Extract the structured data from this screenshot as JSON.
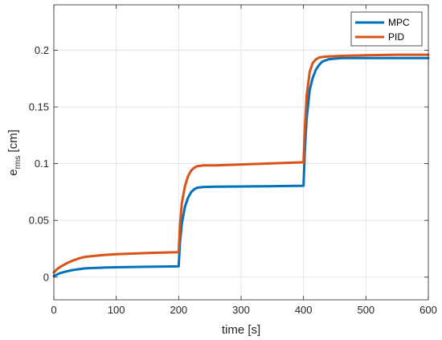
{
  "chart_data": {
    "type": "line",
    "title": "",
    "xlabel": "time [s]",
    "ylabel": {
      "main": "e",
      "sub": "rms",
      "unit": " [cm]"
    },
    "xlim": [
      0,
      600
    ],
    "ylim": [
      -0.02,
      0.24
    ],
    "xticks": [
      0,
      100,
      200,
      300,
      400,
      500,
      600
    ],
    "xtick_labels": [
      "0",
      "100",
      "200",
      "300",
      "400",
      "500",
      "600"
    ],
    "yticks": [
      0,
      0.05,
      0.1,
      0.15,
      0.2
    ],
    "ytick_labels": [
      "0",
      "0.05",
      "0.1",
      "0.15",
      "0.2"
    ],
    "grid": true,
    "legend_position": "top-right",
    "series": [
      {
        "name": "MPC",
        "color": "#0072BD",
        "x": [
          0,
          10,
          20,
          30,
          40,
          50,
          60,
          80,
          100,
          150,
          199,
          200,
          202,
          205,
          210,
          215,
          220,
          225,
          230,
          240,
          260,
          300,
          350,
          399,
          400,
          402,
          405,
          410,
          415,
          420,
          425,
          430,
          440,
          460,
          500,
          550,
          600
        ],
        "y": [
          0.001,
          0.0035,
          0.005,
          0.0062,
          0.007,
          0.0077,
          0.008,
          0.0084,
          0.0087,
          0.0091,
          0.0095,
          0.0095,
          0.03,
          0.047,
          0.062,
          0.07,
          0.075,
          0.0775,
          0.0788,
          0.0795,
          0.0797,
          0.0799,
          0.0802,
          0.0805,
          0.0805,
          0.11,
          0.14,
          0.165,
          0.176,
          0.183,
          0.187,
          0.19,
          0.192,
          0.193,
          0.193,
          0.193,
          0.193
        ]
      },
      {
        "name": "PID",
        "color": "#D95319",
        "x": [
          0,
          5,
          10,
          20,
          30,
          40,
          50,
          52,
          60,
          80,
          100,
          150,
          199,
          200,
          202,
          205,
          210,
          215,
          220,
          225,
          230,
          240,
          260,
          300,
          350,
          399,
          400,
          402,
          405,
          410,
          415,
          420,
          425,
          430,
          440,
          460,
          500,
          550,
          600
        ],
        "y": [
          0.004,
          0.007,
          0.009,
          0.012,
          0.0145,
          0.0165,
          0.0178,
          0.018,
          0.0185,
          0.0195,
          0.0202,
          0.0212,
          0.022,
          0.022,
          0.045,
          0.065,
          0.08,
          0.089,
          0.094,
          0.0965,
          0.0978,
          0.0985,
          0.0985,
          0.0993,
          0.1003,
          0.1012,
          0.1012,
          0.13,
          0.16,
          0.181,
          0.189,
          0.192,
          0.1935,
          0.194,
          0.1945,
          0.195,
          0.1955,
          0.196,
          0.196
        ]
      }
    ]
  }
}
